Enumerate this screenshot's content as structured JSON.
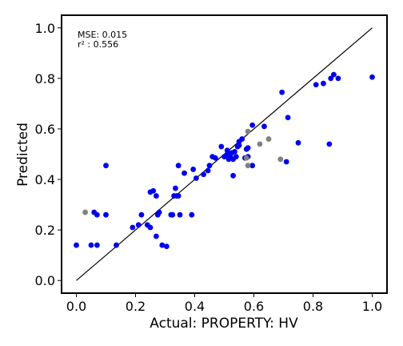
{
  "chart_data": {
    "type": "scatter",
    "title": "",
    "xlabel": "Actual: PROPERTY: HV",
    "ylabel": "Predicted",
    "xlim": [
      -0.05,
      1.05
    ],
    "ylim": [
      -0.05,
      1.05
    ],
    "xticks": [
      0.0,
      0.2,
      0.4,
      0.6,
      0.8,
      1.0
    ],
    "yticks": [
      0.0,
      0.2,
      0.4,
      0.6,
      0.8,
      1.0
    ],
    "xtick_labels": [
      "0.0",
      "0.2",
      "0.4",
      "0.6",
      "0.8",
      "1.0"
    ],
    "ytick_labels": [
      "0.0",
      "0.2",
      "0.4",
      "0.6",
      "0.8",
      "1.0"
    ],
    "grid": false,
    "reference_line": {
      "x": [
        0,
        1
      ],
      "y": [
        0,
        1
      ],
      "color": "#000000"
    },
    "annotations": {
      "mse": "MSE: 0.015",
      "r2": "r² : 0.556"
    },
    "series": [
      {
        "color": "#0000ee",
        "points": [
          [
            0.0,
            0.14
          ],
          [
            0.05,
            0.14
          ],
          [
            0.07,
            0.14
          ],
          [
            0.06,
            0.27
          ],
          [
            0.07,
            0.26
          ],
          [
            0.1,
            0.26
          ],
          [
            0.1,
            0.455
          ],
          [
            0.135,
            0.14
          ],
          [
            0.19,
            0.21
          ],
          [
            0.21,
            0.22
          ],
          [
            0.22,
            0.26
          ],
          [
            0.24,
            0.22
          ],
          [
            0.25,
            0.21
          ],
          [
            0.25,
            0.35
          ],
          [
            0.26,
            0.355
          ],
          [
            0.27,
            0.335
          ],
          [
            0.27,
            0.175
          ],
          [
            0.275,
            0.26
          ],
          [
            0.28,
            0.27
          ],
          [
            0.29,
            0.14
          ],
          [
            0.305,
            0.135
          ],
          [
            0.32,
            0.26
          ],
          [
            0.325,
            0.26
          ],
          [
            0.33,
            0.335
          ],
          [
            0.335,
            0.365
          ],
          [
            0.34,
            0.335
          ],
          [
            0.345,
            0.335
          ],
          [
            0.345,
            0.455
          ],
          [
            0.35,
            0.26
          ],
          [
            0.365,
            0.425
          ],
          [
            0.39,
            0.26
          ],
          [
            0.395,
            0.44
          ],
          [
            0.405,
            0.405
          ],
          [
            0.43,
            0.42
          ],
          [
            0.445,
            0.435
          ],
          [
            0.45,
            0.455
          ],
          [
            0.46,
            0.49
          ],
          [
            0.47,
            0.485
          ],
          [
            0.49,
            0.53
          ],
          [
            0.5,
            0.49
          ],
          [
            0.51,
            0.5
          ],
          [
            0.51,
            0.515
          ],
          [
            0.515,
            0.48
          ],
          [
            0.52,
            0.49
          ],
          [
            0.525,
            0.505
          ],
          [
            0.53,
            0.48
          ],
          [
            0.53,
            0.415
          ],
          [
            0.535,
            0.51
          ],
          [
            0.54,
            0.49
          ],
          [
            0.545,
            0.53
          ],
          [
            0.55,
            0.535
          ],
          [
            0.55,
            0.55
          ],
          [
            0.56,
            0.56
          ],
          [
            0.57,
            0.485
          ],
          [
            0.575,
            0.52
          ],
          [
            0.58,
            0.525
          ],
          [
            0.58,
            0.49
          ],
          [
            0.595,
            0.615
          ],
          [
            0.595,
            0.455
          ],
          [
            0.635,
            0.61
          ],
          [
            0.695,
            0.745
          ],
          [
            0.71,
            0.47
          ],
          [
            0.715,
            0.645
          ],
          [
            0.75,
            0.545
          ],
          [
            0.81,
            0.775
          ],
          [
            0.835,
            0.78
          ],
          [
            0.855,
            0.54
          ],
          [
            0.86,
            0.8
          ],
          [
            0.87,
            0.815
          ],
          [
            0.885,
            0.8
          ],
          [
            1.0,
            0.805
          ]
        ]
      },
      {
        "color": "#808080",
        "points": [
          [
            0.03,
            0.27
          ],
          [
            0.575,
            0.485
          ],
          [
            0.58,
            0.455
          ],
          [
            0.58,
            0.59
          ],
          [
            0.62,
            0.54
          ],
          [
            0.65,
            0.56
          ],
          [
            0.69,
            0.48
          ]
        ]
      }
    ]
  }
}
